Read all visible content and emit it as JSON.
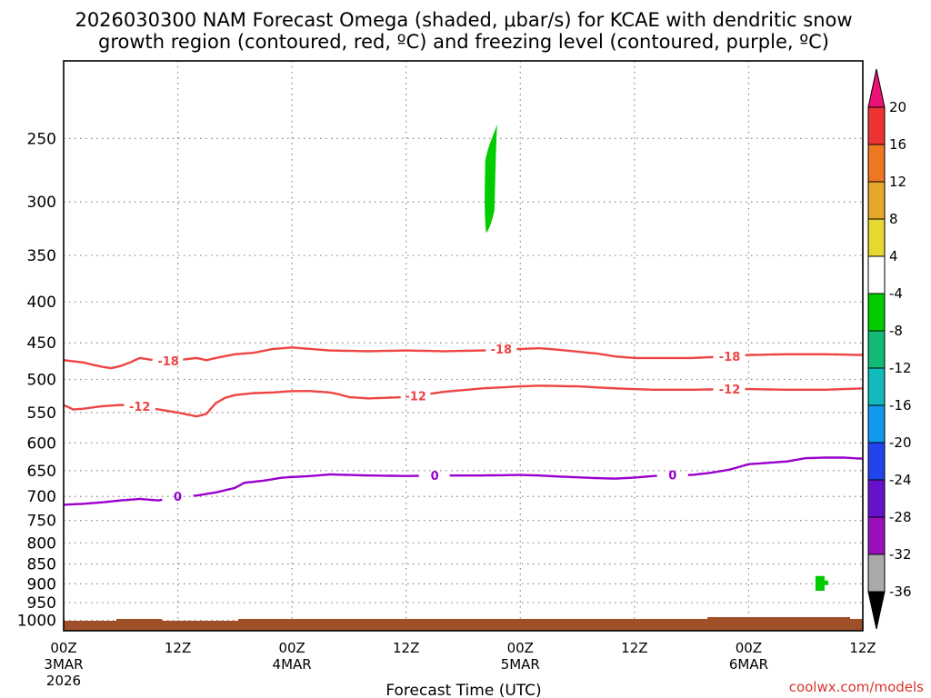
{
  "title_line1": "2026030300 NAM Forecast Omega (shaded, μbar/s) for KCAE with dendritic snow",
  "title_line2": "growth region (contoured, red, ºC) and freezing level (contoured, purple, ºC)",
  "credit": "coolwx.com/models",
  "chart_data": {
    "type": "contour",
    "xlabel": "Forecast Time (UTC)",
    "ylabel": "",
    "x_unit": "forecast hour",
    "x_range": [
      0,
      84
    ],
    "y_unit": "hPa",
    "y_range": [
      1030,
      200
    ],
    "y_scale": "log-pressure",
    "y_ticks": [
      250,
      300,
      350,
      400,
      450,
      500,
      550,
      600,
      650,
      700,
      750,
      800,
      850,
      900,
      950,
      1000
    ],
    "x_ticks": [
      {
        "x": 0,
        "line1": "00Z",
        "line2": "3MAR",
        "line3": "2026"
      },
      {
        "x": 12,
        "line1": "12Z",
        "line2": "",
        "line3": ""
      },
      {
        "x": 24,
        "line1": "00Z",
        "line2": "4MAR",
        "line3": ""
      },
      {
        "x": 36,
        "line1": "12Z",
        "line2": "",
        "line3": ""
      },
      {
        "x": 48,
        "line1": "00Z",
        "line2": "5MAR",
        "line3": ""
      },
      {
        "x": 60,
        "line1": "12Z",
        "line2": "",
        "line3": ""
      },
      {
        "x": 72,
        "line1": "00Z",
        "line2": "6MAR",
        "line3": ""
      },
      {
        "x": 84,
        "line1": "12Z",
        "line2": "",
        "line3": ""
      }
    ],
    "grid": true,
    "contours": [
      {
        "label": "-18",
        "color": "#ee4444",
        "points": [
          [
            0,
            473
          ],
          [
            2,
            476
          ],
          [
            4,
            482
          ],
          [
            5,
            484
          ],
          [
            6,
            481
          ],
          [
            7,
            476
          ],
          [
            8,
            470
          ],
          [
            9,
            472
          ],
          [
            10,
            474
          ],
          [
            12,
            473
          ],
          [
            14,
            470
          ],
          [
            15,
            473
          ],
          [
            16,
            470
          ],
          [
            18,
            465
          ],
          [
            20,
            463
          ],
          [
            22,
            458
          ],
          [
            24,
            456
          ],
          [
            26,
            458
          ],
          [
            28,
            460
          ],
          [
            32,
            461
          ],
          [
            36,
            460
          ],
          [
            40,
            461
          ],
          [
            44,
            460
          ],
          [
            48,
            458
          ],
          [
            50,
            457
          ],
          [
            52,
            459
          ],
          [
            56,
            464
          ],
          [
            58,
            468
          ],
          [
            60,
            470
          ],
          [
            66,
            470
          ],
          [
            70,
            468
          ],
          [
            72,
            466
          ],
          [
            76,
            465
          ],
          [
            80,
            465
          ],
          [
            84,
            466
          ]
        ],
        "label_at": [
          [
            11,
            474
          ],
          [
            46,
            458
          ],
          [
            70,
            468
          ]
        ]
      },
      {
        "label": "-12",
        "color": "#ee4444",
        "points": [
          [
            0,
            538
          ],
          [
            1,
            545
          ],
          [
            2,
            544
          ],
          [
            4,
            540
          ],
          [
            6,
            538
          ],
          [
            8,
            540
          ],
          [
            10,
            545
          ],
          [
            12,
            550
          ],
          [
            14,
            556
          ],
          [
            15,
            552
          ],
          [
            16,
            535
          ],
          [
            17,
            527
          ],
          [
            18,
            523
          ],
          [
            20,
            520
          ],
          [
            22,
            519
          ],
          [
            24,
            517
          ],
          [
            26,
            517
          ],
          [
            28,
            519
          ],
          [
            29,
            522
          ],
          [
            30,
            526
          ],
          [
            32,
            528
          ],
          [
            36,
            526
          ],
          [
            38,
            522
          ],
          [
            40,
            518
          ],
          [
            44,
            513
          ],
          [
            48,
            510
          ],
          [
            50,
            509
          ],
          [
            54,
            510
          ],
          [
            58,
            513
          ],
          [
            62,
            515
          ],
          [
            66,
            515
          ],
          [
            70,
            514
          ],
          [
            72,
            514
          ],
          [
            76,
            515
          ],
          [
            80,
            515
          ],
          [
            84,
            513
          ]
        ],
        "label_at": [
          [
            8,
            540
          ],
          [
            37,
            524
          ],
          [
            70,
            514
          ]
        ]
      },
      {
        "label": "0",
        "color": "#9900cc",
        "points": [
          [
            0,
            717
          ],
          [
            2,
            715
          ],
          [
            4,
            712
          ],
          [
            6,
            708
          ],
          [
            8,
            705
          ],
          [
            10,
            708
          ],
          [
            12,
            700
          ],
          [
            14,
            698
          ],
          [
            16,
            692
          ],
          [
            18,
            683
          ],
          [
            19,
            673
          ],
          [
            21,
            669
          ],
          [
            23,
            663
          ],
          [
            26,
            660
          ],
          [
            28,
            657
          ],
          [
            30,
            658
          ],
          [
            32,
            659
          ],
          [
            36,
            660
          ],
          [
            40,
            659
          ],
          [
            44,
            659
          ],
          [
            48,
            658
          ],
          [
            50,
            659
          ],
          [
            52,
            661
          ],
          [
            56,
            664
          ],
          [
            58,
            665
          ],
          [
            60,
            663
          ],
          [
            62,
            660
          ],
          [
            64,
            659
          ],
          [
            66,
            658
          ],
          [
            68,
            654
          ],
          [
            70,
            648
          ],
          [
            72,
            638
          ],
          [
            76,
            633
          ],
          [
            78,
            627
          ],
          [
            80,
            626
          ],
          [
            82,
            626
          ],
          [
            84,
            628
          ]
        ],
        "label_at": [
          [
            12,
            700
          ],
          [
            39,
            659
          ],
          [
            64,
            658
          ]
        ]
      }
    ],
    "shaded_regions": [
      {
        "value_bin": "-8 to -4",
        "color": "#00cc00",
        "center_x": 44.8,
        "p_top": 240,
        "p_bottom": 328
      },
      {
        "value_bin": "-8 to -4",
        "color": "#00cc00",
        "center_x": 79.5,
        "p_top": 880,
        "p_bottom": 918
      }
    ],
    "terrain": {
      "color": "#a05028",
      "note": "ground surface near 1008-1012 hPa"
    },
    "colorbar": {
      "label": "μbar/s",
      "levels": [
        20,
        16,
        12,
        8,
        4,
        -4,
        -8,
        -12,
        -16,
        -20,
        -24,
        -28,
        -32,
        -36
      ],
      "colors": [
        "#ee1177",
        "#ee3333",
        "#ee7722",
        "#e6a82a",
        "#e6d830",
        "#ffffff",
        "#00cc00",
        "#11bb77",
        "#11bbbb",
        "#1199ee",
        "#2244ee",
        "#6611cc",
        "#9911bb",
        "#aaaaaa",
        "#000000"
      ]
    }
  }
}
